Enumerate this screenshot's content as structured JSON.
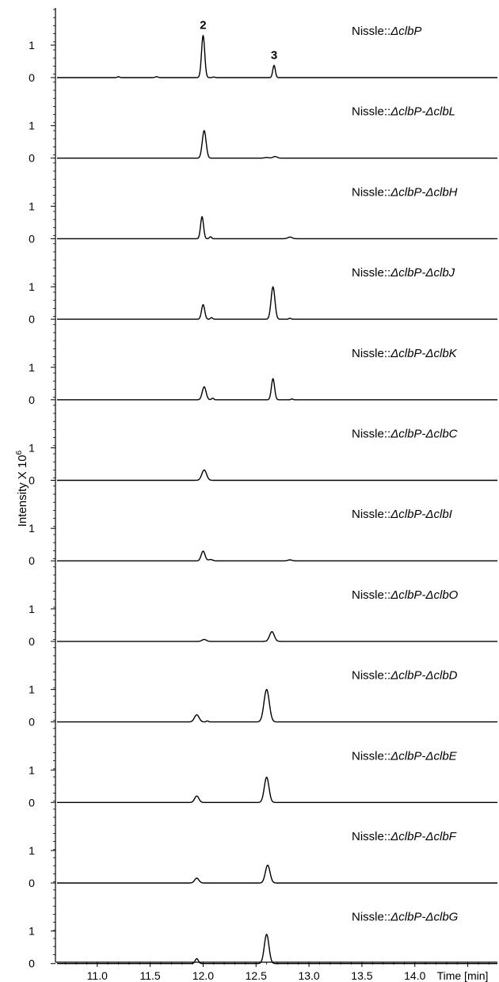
{
  "chart_data": {
    "type": "line",
    "ylabel_prefix": "Intensity X 10",
    "ylabel_exponent": "6",
    "x_unit_label": "Time [min]",
    "xlim": [
      10.62,
      14.78
    ],
    "x_ticks": [
      "11.0",
      "11.5",
      "12.0",
      "12.5",
      "13.0",
      "13.5",
      "14.0"
    ],
    "y_ticks": [
      "0",
      "1"
    ],
    "ylim": [
      -0.35,
      1.55
    ],
    "peak_labels": [
      {
        "text": "2",
        "x": 12.0
      },
      {
        "text": "3",
        "x": 12.67
      }
    ],
    "series": [
      {
        "name": "Nissle::",
        "name_italic": "ΔclbP",
        "peaks": [
          [
            11.2,
            0.03,
            0.01
          ],
          [
            11.56,
            0.03,
            0.012
          ],
          [
            12.0,
            1.3,
            0.015
          ],
          [
            12.1,
            0.02,
            0.01
          ],
          [
            12.67,
            0.38,
            0.012
          ]
        ]
      },
      {
        "name": "Nissle::",
        "name_italic": "ΔclbP-ΔclbL",
        "peaks": [
          [
            12.01,
            0.85,
            0.018
          ],
          [
            12.6,
            0.02,
            0.02
          ],
          [
            12.68,
            0.05,
            0.02
          ]
        ]
      },
      {
        "name": "Nissle::",
        "name_italic": "ΔclbP-ΔclbH",
        "peaks": [
          [
            11.99,
            0.68,
            0.014
          ],
          [
            12.07,
            0.06,
            0.01
          ],
          [
            12.82,
            0.05,
            0.02
          ]
        ]
      },
      {
        "name": "Nissle::",
        "name_italic": "ΔclbP-ΔclbJ",
        "peaks": [
          [
            12.0,
            0.45,
            0.015
          ],
          [
            12.08,
            0.05,
            0.01
          ],
          [
            12.66,
            1.0,
            0.018
          ],
          [
            12.82,
            0.03,
            0.01
          ]
        ]
      },
      {
        "name": "Nissle::",
        "name_italic": "ΔclbP-ΔclbK",
        "peaks": [
          [
            12.01,
            0.4,
            0.018
          ],
          [
            12.09,
            0.05,
            0.01
          ],
          [
            12.66,
            0.65,
            0.015
          ],
          [
            12.84,
            0.03,
            0.008
          ]
        ]
      },
      {
        "name": "Nissle::",
        "name_italic": "ΔclbP-ΔclbC",
        "peaks": [
          [
            12.01,
            0.32,
            0.022
          ]
        ]
      },
      {
        "name": "Nissle::",
        "name_italic": "ΔclbP-ΔclbI",
        "peaks": [
          [
            12.0,
            0.3,
            0.018
          ],
          [
            12.07,
            0.04,
            0.02
          ],
          [
            12.82,
            0.03,
            0.02
          ]
        ]
      },
      {
        "name": "Nissle::",
        "name_italic": "ΔclbP-ΔclbO",
        "peaks": [
          [
            12.01,
            0.06,
            0.02
          ],
          [
            12.65,
            0.3,
            0.022
          ]
        ]
      },
      {
        "name": "Nissle::",
        "name_italic": "ΔclbP-ΔclbD",
        "peaks": [
          [
            11.94,
            0.22,
            0.022
          ],
          [
            12.04,
            0.03,
            0.01
          ],
          [
            12.6,
            1.0,
            0.025
          ]
        ]
      },
      {
        "name": "Nissle::",
        "name_italic": "ΔclbP-ΔclbE",
        "peaks": [
          [
            11.94,
            0.2,
            0.02
          ],
          [
            12.6,
            0.78,
            0.022
          ]
        ]
      },
      {
        "name": "Nissle::",
        "name_italic": "ΔclbP-ΔclbF",
        "peaks": [
          [
            11.94,
            0.15,
            0.02
          ],
          [
            12.61,
            0.55,
            0.022
          ]
        ]
      },
      {
        "name": "Nissle::",
        "name_italic": "ΔclbP-ΔclbG",
        "peaks": [
          [
            11.94,
            0.15,
            0.015
          ],
          [
            12.6,
            0.9,
            0.022
          ]
        ]
      }
    ]
  }
}
